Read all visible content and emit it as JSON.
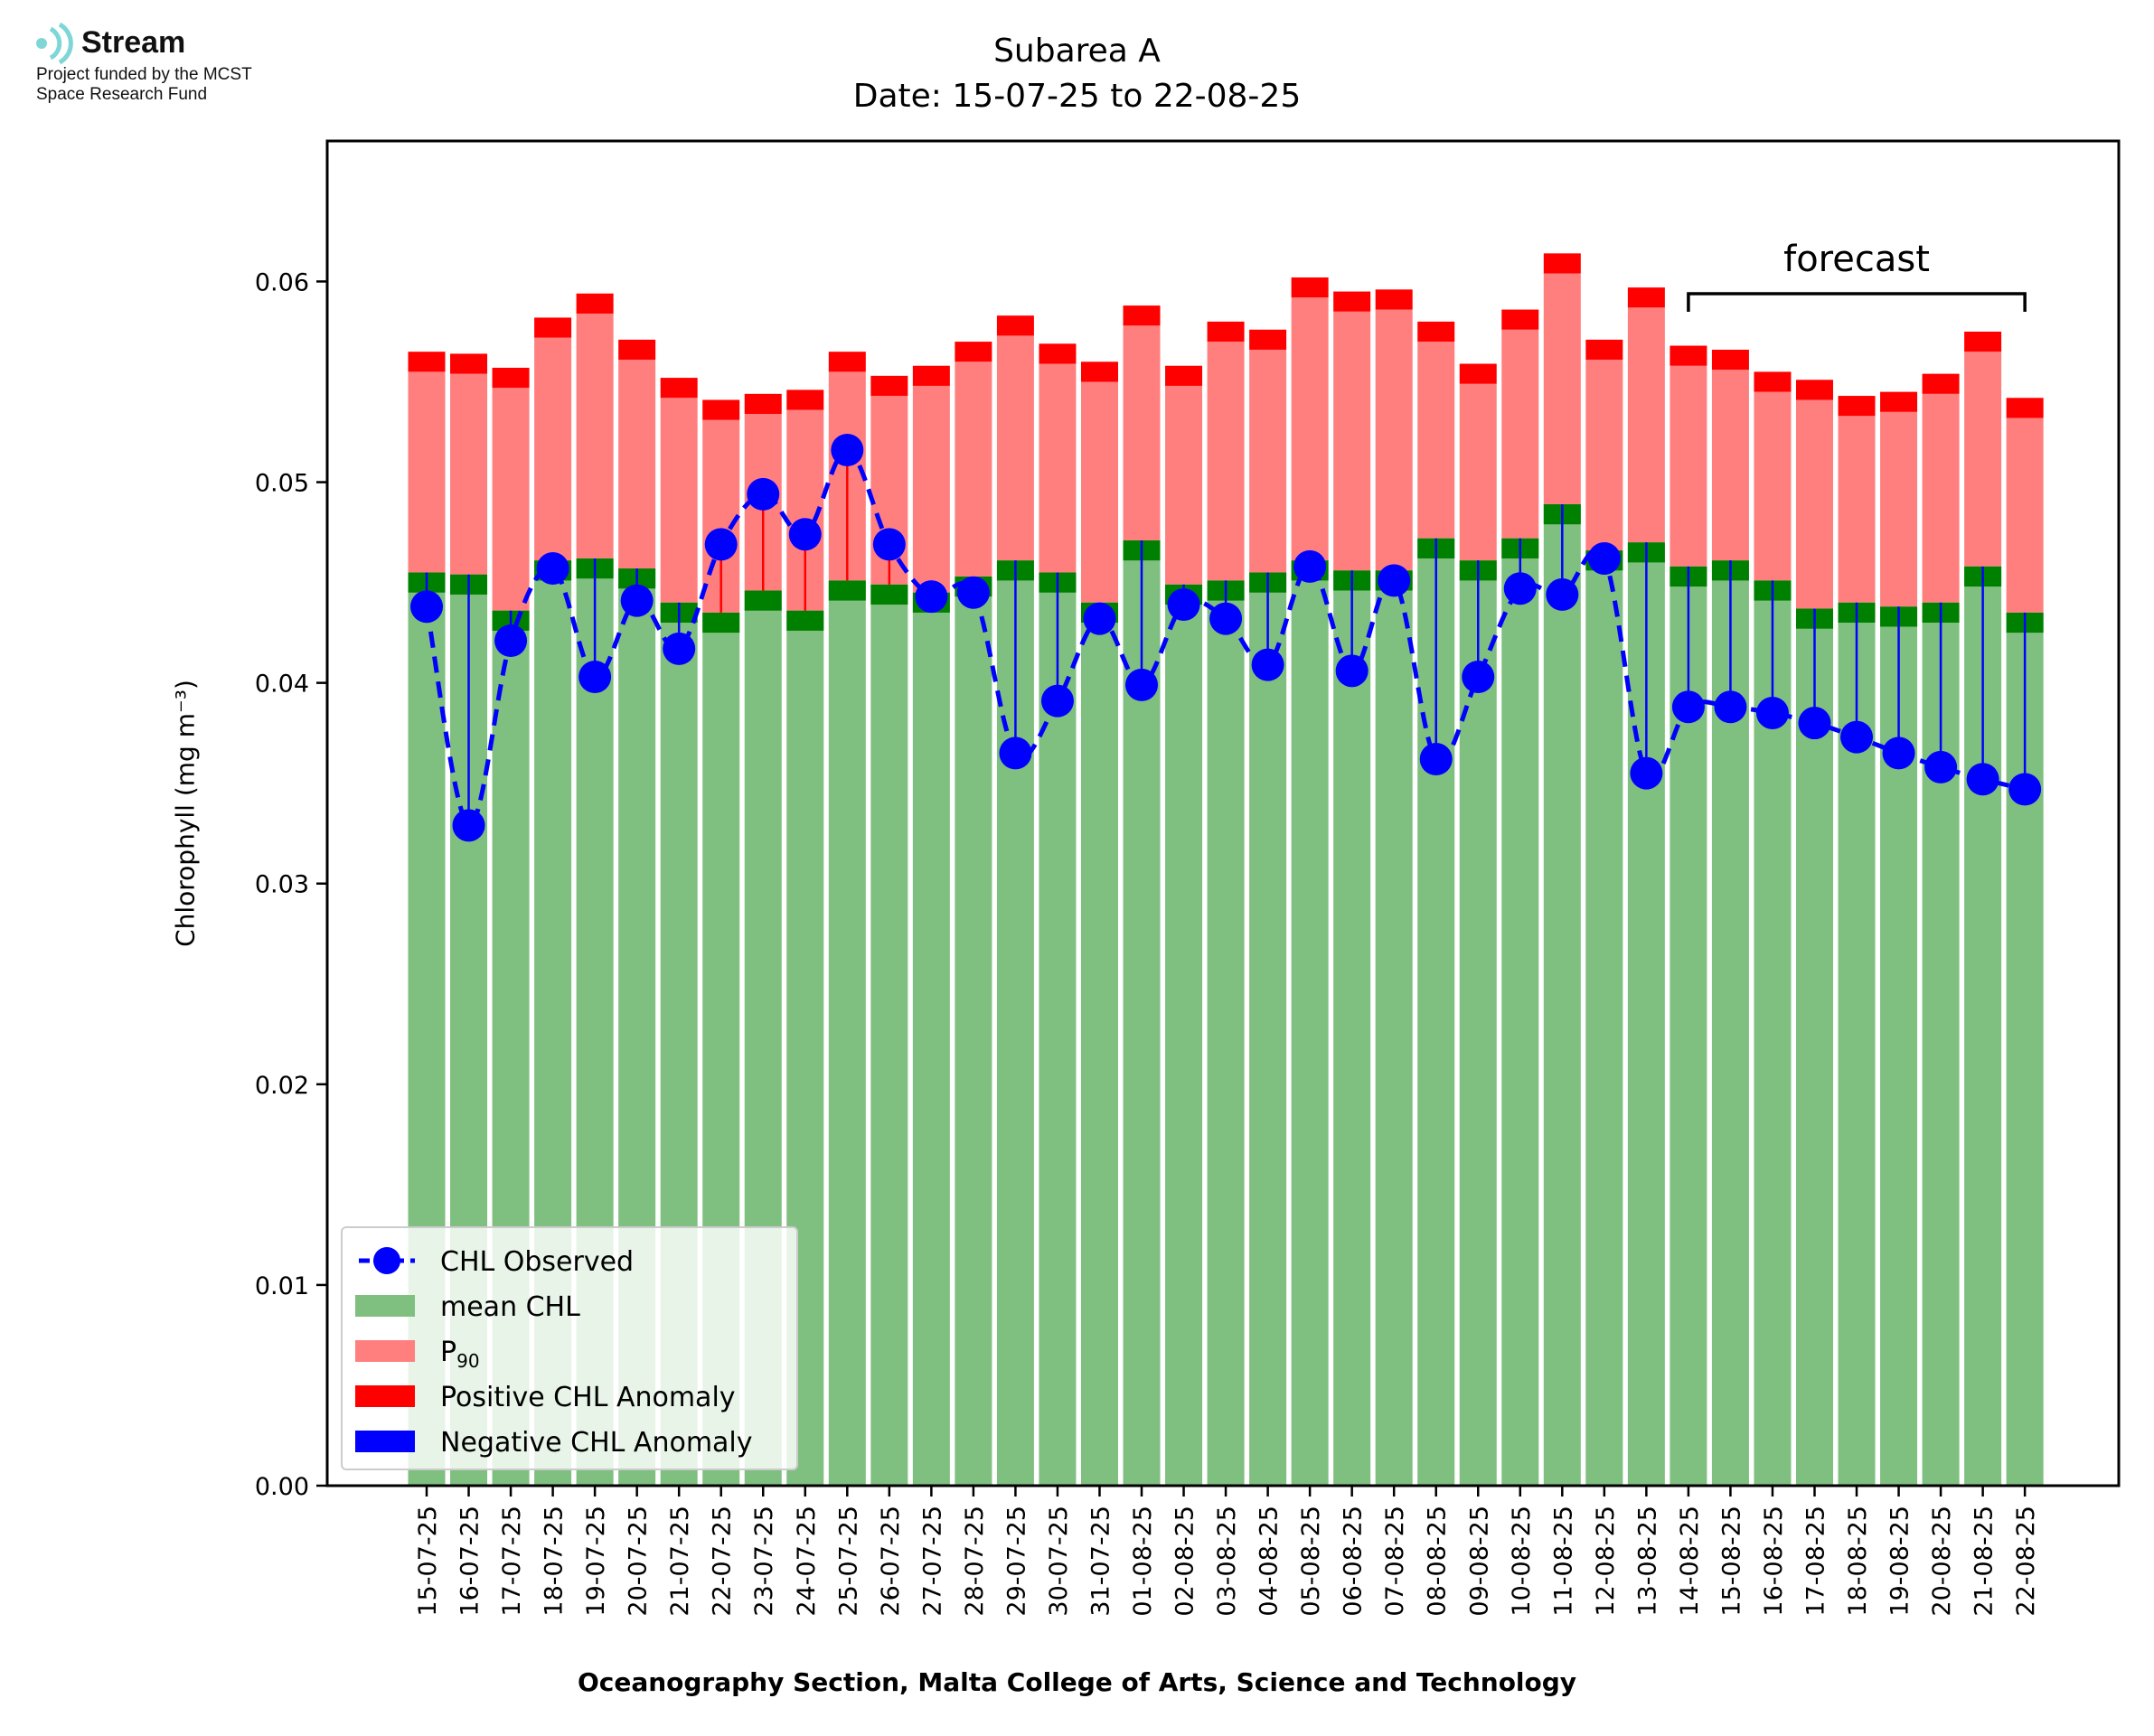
{
  "logo": {
    "name": "Stream",
    "line1": "Project funded by the MCST",
    "line2": "Space Research Fund",
    "accent_color": "#7fd6d6"
  },
  "footer": "Oceanography Section, Malta College of Arts, Science and Technology",
  "colors": {
    "mean": "#7fbf7f",
    "p90": "#ff7f7f",
    "positive_anomaly": "#ff0000",
    "negative_anomaly": "#0000ff",
    "mean_band": "#008000",
    "observed": "#0000ff"
  },
  "chart_data": {
    "type": "bar",
    "title": "Subarea A",
    "subtitle": "Date: 15-07-25 to 22-08-25",
    "xlabel": "",
    "ylabel": "Chlorophyll (mg m⁻³)",
    "ylim": [
      0,
      0.067
    ],
    "yticks": [
      "0.00",
      "0.01",
      "0.02",
      "0.03",
      "0.04",
      "0.05",
      "0.06"
    ],
    "grid": false,
    "legend_position": "lower-left",
    "annotation": "forecast",
    "forecast_range": [
      "14-08-25",
      "22-08-25"
    ],
    "categories": [
      "15-07-25",
      "16-07-25",
      "17-07-25",
      "18-07-25",
      "19-07-25",
      "20-07-25",
      "21-07-25",
      "22-07-25",
      "23-07-25",
      "24-07-25",
      "25-07-25",
      "26-07-25",
      "27-07-25",
      "28-07-25",
      "29-07-25",
      "30-07-25",
      "31-07-25",
      "01-08-25",
      "02-08-25",
      "03-08-25",
      "04-08-25",
      "05-08-25",
      "06-08-25",
      "07-08-25",
      "08-08-25",
      "09-08-25",
      "10-08-25",
      "11-08-25",
      "12-08-25",
      "13-08-25",
      "14-08-25",
      "15-08-25",
      "16-08-25",
      "17-08-25",
      "18-08-25",
      "19-08-25",
      "20-08-25",
      "21-08-25",
      "22-08-25"
    ],
    "series": [
      {
        "name": "CHL Observed",
        "values": [
          0.0438,
          0.0329,
          0.0421,
          0.0457,
          0.0403,
          0.0441,
          0.0417,
          0.0469,
          0.0494,
          0.0474,
          0.0516,
          0.0469,
          0.0443,
          0.0445,
          0.0365,
          0.0391,
          0.0432,
          0.0399,
          0.0439,
          0.0432,
          0.0409,
          0.0458,
          0.0406,
          0.0451,
          0.0362,
          0.0403,
          0.0447,
          0.0444,
          0.0462,
          0.0355,
          0.0388,
          0.0388,
          0.0385,
          0.038,
          0.0373,
          0.0365,
          0.0358,
          0.0352,
          0.0347
        ]
      },
      {
        "name": "mean CHL",
        "values": [
          0.0455,
          0.0454,
          0.0436,
          0.0461,
          0.0462,
          0.0457,
          0.044,
          0.0435,
          0.0446,
          0.0436,
          0.0451,
          0.0449,
          0.0445,
          0.0453,
          0.0461,
          0.0455,
          0.044,
          0.0471,
          0.0449,
          0.0451,
          0.0455,
          0.0461,
          0.0456,
          0.0456,
          0.0472,
          0.0461,
          0.0472,
          0.0489,
          0.0466,
          0.047,
          0.0458,
          0.0461,
          0.0451,
          0.0437,
          0.044,
          0.0438,
          0.044,
          0.0458,
          0.0435
        ]
      },
      {
        "name": "P₉₀",
        "values": [
          0.0555,
          0.0554,
          0.0547,
          0.0572,
          0.0584,
          0.0561,
          0.0542,
          0.0531,
          0.0534,
          0.0536,
          0.0555,
          0.0543,
          0.0548,
          0.056,
          0.0573,
          0.0559,
          0.055,
          0.0578,
          0.0548,
          0.057,
          0.0566,
          0.0592,
          0.0585,
          0.0586,
          0.057,
          0.0549,
          0.0576,
          0.0604,
          0.0561,
          0.0587,
          0.0558,
          0.0556,
          0.0545,
          0.0541,
          0.0533,
          0.0535,
          0.0544,
          0.0565,
          0.0532
        ]
      }
    ]
  },
  "legend": [
    {
      "label": "CHL Observed",
      "kind": "line"
    },
    {
      "label": "mean CHL",
      "kind": "mean"
    },
    {
      "label": "P",
      "sub": "90",
      "kind": "p90"
    },
    {
      "label": "Positive CHL Anomaly",
      "kind": "pos"
    },
    {
      "label": "Negative CHL Anomaly",
      "kind": "neg"
    }
  ]
}
